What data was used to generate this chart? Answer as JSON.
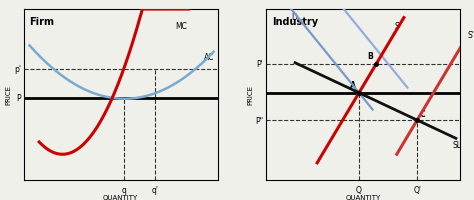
{
  "fig_width": 4.74,
  "fig_height": 2.01,
  "dpi": 100,
  "bg_color": "#f0f0eb",
  "firm": {
    "title": "Firm",
    "xlim": [
      0,
      10
    ],
    "ylim": [
      0,
      10
    ],
    "p_prime": 6.5,
    "p_level": 4.8,
    "q_val": 5.2,
    "q_prime": 6.8,
    "mc_color": "#cc0000",
    "ac_color": "#7aaad0",
    "price_line_color": "#000000",
    "dashed_color": "#333333"
  },
  "industry": {
    "title": "Industry",
    "xlim": [
      0,
      10
    ],
    "ylim": [
      0,
      10
    ],
    "p_prime": 6.8,
    "p_double_prime": 3.5,
    "p_eq": 5.1,
    "Q_val": 4.8,
    "Q_prime": 7.8,
    "D_color": "#7799cc",
    "D2_color": "#99aadd",
    "S_color": "#cc0000",
    "S2_color": "#cc3333",
    "SL_color": "#111111",
    "dashed_color": "#333333",
    "price_line_color": "#000000"
  }
}
